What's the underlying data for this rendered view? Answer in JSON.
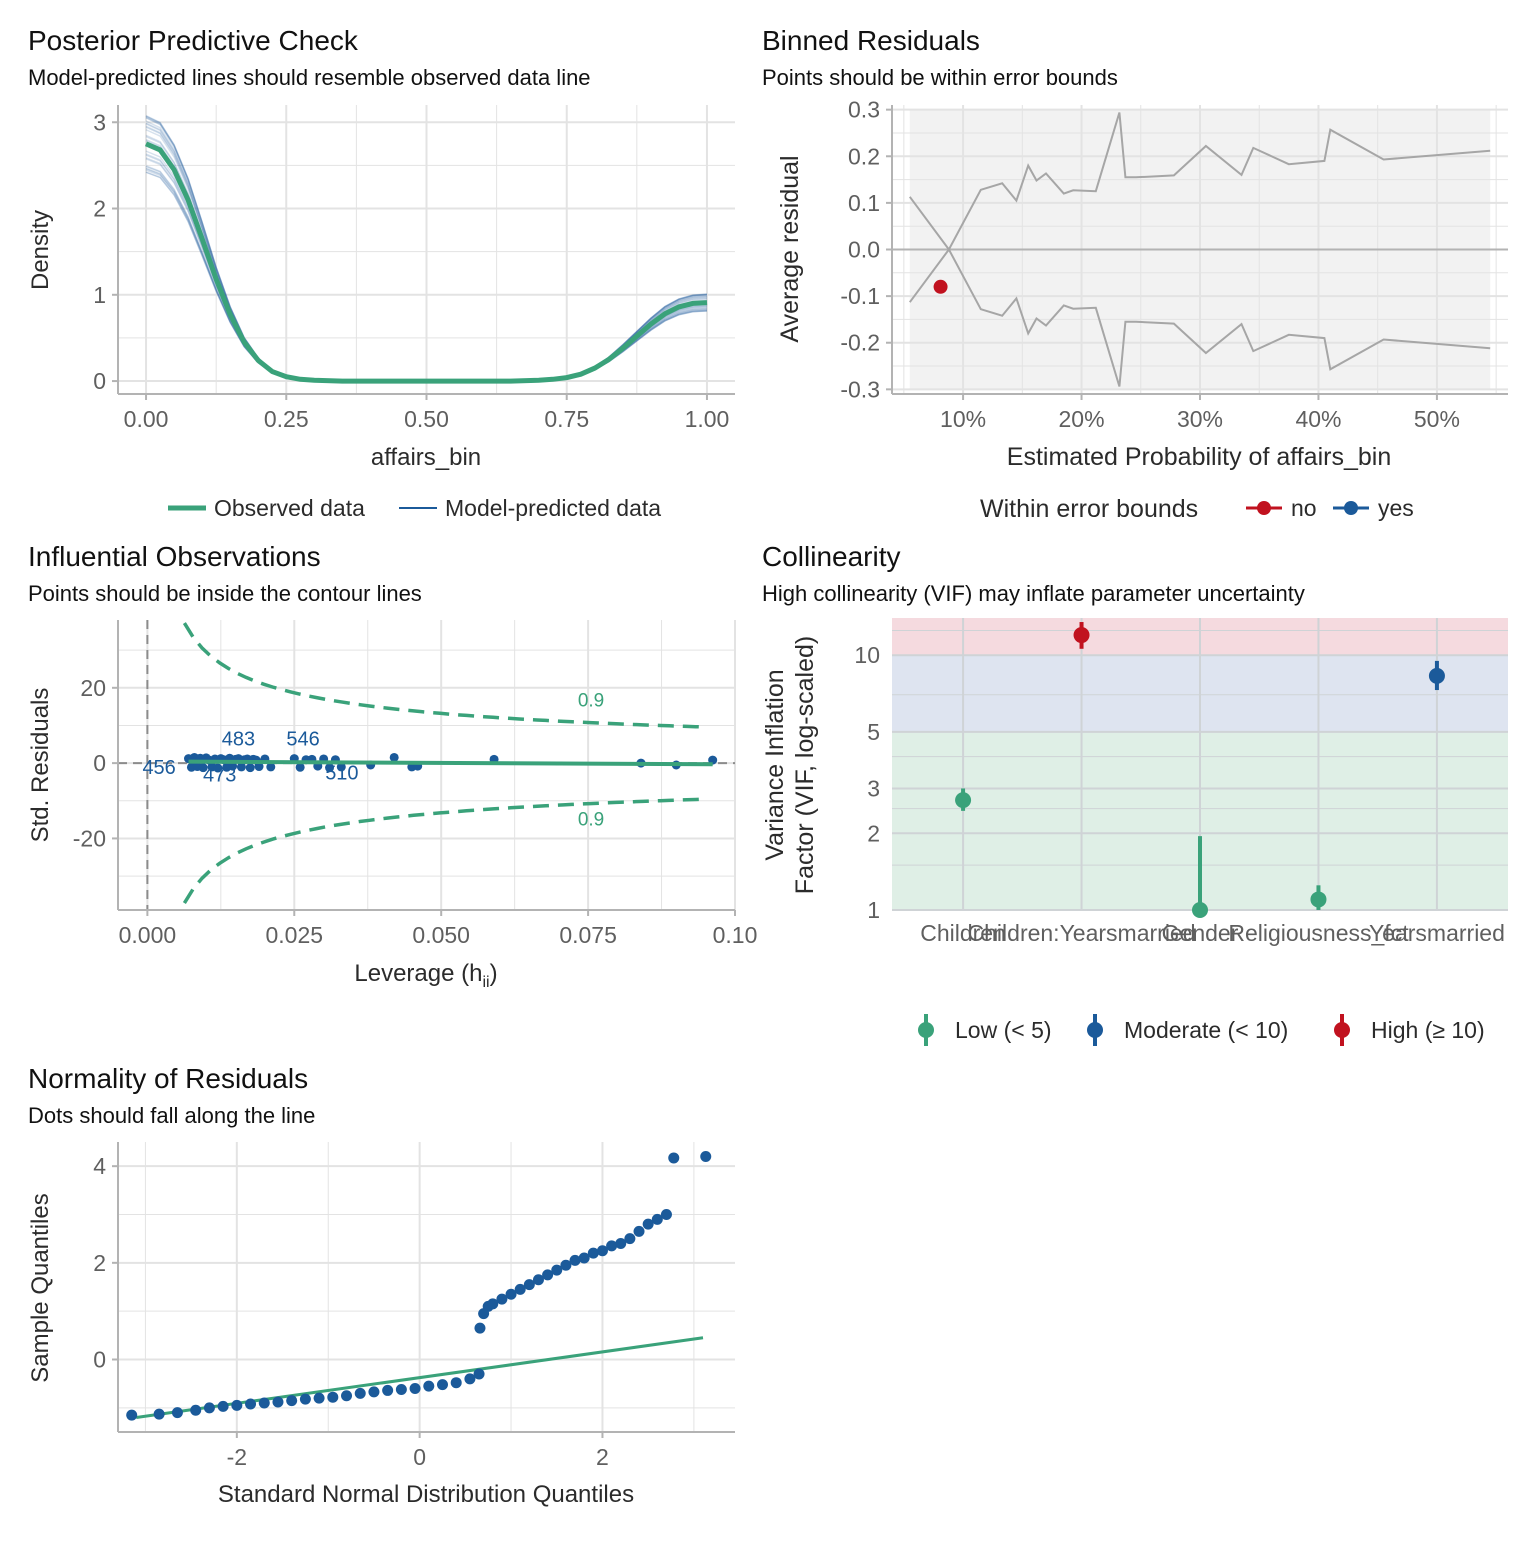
{
  "colors": {
    "green": "#3aa27a",
    "blue": "#1b5a9a",
    "red": "#c1121f",
    "grid": "#e3e3e3",
    "axis": "#b3b3b3",
    "text": "#2b2b2b",
    "tick": "#5f5f5f",
    "band_green": "#dfefe6",
    "band_blue": "#dee4f0",
    "band_red": "#f5dadf",
    "band_gray": "#f2f2f2",
    "bound_line": "#a6a6a6"
  },
  "chart_data": [
    {
      "id": "ppc",
      "type": "line",
      "title": "Posterior Predictive Check",
      "subtitle": "Model-predicted lines should resemble observed data line",
      "xlabel": "affairs_bin",
      "ylabel": "Density",
      "xlim": [
        -0.05,
        1.05
      ],
      "ylim": [
        -0.15,
        3.2
      ],
      "xticks": [
        0,
        0.25,
        0.5,
        0.75,
        1
      ],
      "xtick_labels": [
        "0.00",
        "0.25",
        "0.50",
        "0.75",
        "1.00"
      ],
      "yticks": [
        0,
        1,
        2,
        3
      ],
      "ytick_labels": [
        "0",
        "1",
        "2",
        "3"
      ],
      "observed": {
        "x": [
          0,
          0.025,
          0.05,
          0.075,
          0.1,
          0.125,
          0.15,
          0.175,
          0.2,
          0.225,
          0.25,
          0.275,
          0.3,
          0.35,
          0.4,
          0.5,
          0.6,
          0.65,
          0.7,
          0.725,
          0.75,
          0.775,
          0.8,
          0.825,
          0.85,
          0.875,
          0.9,
          0.925,
          0.95,
          0.975,
          1
        ],
        "y": [
          2.75,
          2.68,
          2.45,
          2.1,
          1.65,
          1.18,
          0.77,
          0.45,
          0.24,
          0.11,
          0.05,
          0.02,
          0.01,
          0.0,
          0.0,
          0.0,
          0.0,
          0.0,
          0.01,
          0.02,
          0.04,
          0.08,
          0.15,
          0.25,
          0.38,
          0.52,
          0.66,
          0.78,
          0.86,
          0.9,
          0.91
        ]
      },
      "predicted_spread": 0.12,
      "predicted_count": 28,
      "legend": [
        "Observed data",
        "Model-predicted data"
      ]
    },
    {
      "id": "binned",
      "type": "scatter",
      "title": "Binned Residuals",
      "subtitle": "Points should be within error bounds",
      "xlabel": "Estimated Probability of affairs_bin",
      "ylabel": "Average residual",
      "xlim": [
        0.04,
        0.56
      ],
      "ylim": [
        -0.31,
        0.31
      ],
      "xticks": [
        0.1,
        0.2,
        0.3,
        0.4,
        0.5
      ],
      "xtick_labels": [
        "10%",
        "20%",
        "30%",
        "40%",
        "50%"
      ],
      "yticks": [
        -0.3,
        -0.2,
        -0.1,
        0,
        0.1,
        0.2,
        0.3
      ],
      "ytick_labels": [
        "-0.3",
        "-0.2",
        "-0.1",
        "0.0",
        "0.1",
        "0.2",
        "0.3"
      ],
      "bound_x": [
        0.055,
        0.088,
        0.115,
        0.133,
        0.145,
        0.155,
        0.162,
        0.17,
        0.185,
        0.193,
        0.212,
        0.232,
        0.237,
        0.246,
        0.278,
        0.305,
        0.335,
        0.345,
        0.375,
        0.405,
        0.41,
        0.455,
        0.545
      ],
      "bound_upper": [
        0.113,
        0.0,
        0.128,
        0.142,
        0.105,
        0.18,
        0.148,
        0.163,
        0.12,
        0.127,
        0.125,
        0.294,
        0.155,
        0.155,
        0.159,
        0.222,
        0.16,
        0.218,
        0.183,
        0.19,
        0.257,
        0.193,
        0.212
      ],
      "points": [
        {
          "x": 0.081,
          "y": -0.08,
          "within": "no"
        }
      ],
      "legend_title": "Within error bounds",
      "legend": [
        "no",
        "yes"
      ]
    },
    {
      "id": "influential",
      "type": "scatter",
      "title": "Influential Observations",
      "subtitle": "Points should be inside the contour lines",
      "xlabel": "Leverage (h",
      "xlabel_sub": "ii",
      "xlabel_suffix": ")",
      "ylabel": "Std. Residuals",
      "xlim": [
        -0.005,
        0.1
      ],
      "ylim": [
        -39,
        38
      ],
      "xticks": [
        0,
        0.025,
        0.05,
        0.075,
        0.1
      ],
      "xtick_labels": [
        "0.000",
        "0.025",
        "0.050",
        "0.075",
        "0.10"
      ],
      "yticks": [
        -20,
        0,
        20
      ],
      "ytick_labels": [
        "-20",
        "0",
        "20"
      ],
      "contour_constant": 2.95,
      "contour_label": "0.9",
      "point_labels": [
        {
          "text": "483",
          "x": 0.0155,
          "y": 6.5
        },
        {
          "text": "546",
          "x": 0.0265,
          "y": 6.5
        },
        {
          "text": "456",
          "x": 0.002,
          "y": -1
        },
        {
          "text": "473",
          "x": 0.0123,
          "y": -3
        },
        {
          "text": "510",
          "x": 0.0331,
          "y": -2.5
        }
      ],
      "points_x": [
        0.007,
        0.0075,
        0.008,
        0.0085,
        0.009,
        0.0095,
        0.01,
        0.0105,
        0.011,
        0.0115,
        0.012,
        0.0125,
        0.013,
        0.0135,
        0.014,
        0.0145,
        0.015,
        0.0155,
        0.016,
        0.0165,
        0.017,
        0.0175,
        0.018,
        0.0185,
        0.019,
        0.02,
        0.021,
        0.025,
        0.026,
        0.027,
        0.028,
        0.029,
        0.03,
        0.031,
        0.032,
        0.033,
        0.038,
        0.042,
        0.045,
        0.046,
        0.059,
        0.084,
        0.09,
        0.0962
      ],
      "points_y": [
        1.2,
        -1.1,
        1.5,
        -0.9,
        1.3,
        -1.2,
        1.4,
        0.8,
        -1.0,
        1.1,
        -1.3,
        1.2,
        0.9,
        -1.1,
        1.3,
        -0.8,
        1.0,
        1.2,
        -1.0,
        0.9,
        1.1,
        -1.2,
        1.0,
        0.8,
        -0.9,
        1.1,
        -1.0,
        1.2,
        -1.1,
        0.9,
        1.0,
        -0.8,
        1.1,
        -1.2,
        0.9,
        -1.0,
        -0.5,
        1.5,
        -1.0,
        -0.8,
        1.0,
        0.0,
        -0.5,
        0.8
      ]
    },
    {
      "id": "collinearity",
      "type": "scatter",
      "title": "Collinearity",
      "subtitle": "High collinearity (VIF) may inflate parameter uncertainty",
      "ylabel_line1": "Variance Inflation",
      "ylabel_line2": "Factor (VIF, log-scaled)",
      "y_scale": "log",
      "ylim": [
        1,
        14
      ],
      "yticks": [
        1,
        2,
        3,
        5,
        10
      ],
      "ytick_labels": [
        "1",
        "2",
        "3",
        "5",
        "10"
      ],
      "categories": [
        "Children",
        "Children:Yearsmarried",
        "Gender",
        "Religiousness_fct",
        "Yearsmarried"
      ],
      "values": [
        2.7,
        12,
        1.0,
        1.1,
        8.3
      ],
      "ci_low": [
        2.45,
        10.6,
        1.0,
        1.0,
        7.3
      ],
      "ci_high": [
        3.0,
        13.5,
        1.95,
        1.25,
        9.5
      ],
      "levels": [
        "low",
        "high",
        "low",
        "low",
        "moderate"
      ],
      "legend": [
        "Low (< 5)",
        "Moderate (< 10)",
        "High (≥ 10)"
      ]
    },
    {
      "id": "qq",
      "type": "scatter",
      "title": "Normality of Residuals",
      "subtitle": "Dots should fall along the line",
      "xlabel": "Standard Normal Distribution Quantiles",
      "ylabel": "Sample Quantiles",
      "xlim": [
        -3.3,
        3.45
      ],
      "ylim": [
        -1.5,
        4.5
      ],
      "xticks": [
        -2,
        0,
        2
      ],
      "xtick_labels": [
        "-2",
        "0",
        "2"
      ],
      "yticks": [
        0,
        2,
        4
      ],
      "ytick_labels": [
        "0",
        "2",
        "4"
      ],
      "ref_line": {
        "x": [
          -3.1,
          3.1
        ],
        "y": [
          -1.2,
          0.45
        ]
      },
      "points_x": [
        -3.15,
        -2.85,
        -2.65,
        -2.45,
        -2.3,
        -2.15,
        -2.0,
        -1.85,
        -1.7,
        -1.55,
        -1.4,
        -1.25,
        -1.1,
        -0.95,
        -0.8,
        -0.65,
        -0.5,
        -0.35,
        -0.2,
        -0.05,
        0.1,
        0.25,
        0.4,
        0.55,
        0.65,
        0.66,
        0.7,
        0.75,
        0.8,
        0.9,
        1.0,
        1.1,
        1.2,
        1.3,
        1.4,
        1.5,
        1.6,
        1.7,
        1.8,
        1.9,
        2.0,
        2.1,
        2.2,
        2.3,
        2.4,
        2.5,
        2.6,
        2.7,
        2.78,
        3.13
      ],
      "points_y": [
        -1.15,
        -1.13,
        -1.1,
        -1.05,
        -1.0,
        -0.97,
        -0.95,
        -0.92,
        -0.9,
        -0.88,
        -0.85,
        -0.82,
        -0.8,
        -0.78,
        -0.75,
        -0.7,
        -0.67,
        -0.64,
        -0.62,
        -0.6,
        -0.55,
        -0.52,
        -0.48,
        -0.4,
        -0.3,
        0.65,
        0.95,
        1.1,
        1.15,
        1.25,
        1.35,
        1.45,
        1.55,
        1.65,
        1.75,
        1.85,
        1.95,
        2.05,
        2.1,
        2.2,
        2.25,
        2.35,
        2.4,
        2.5,
        2.65,
        2.8,
        2.9,
        3.0,
        4.17,
        4.2
      ]
    }
  ]
}
